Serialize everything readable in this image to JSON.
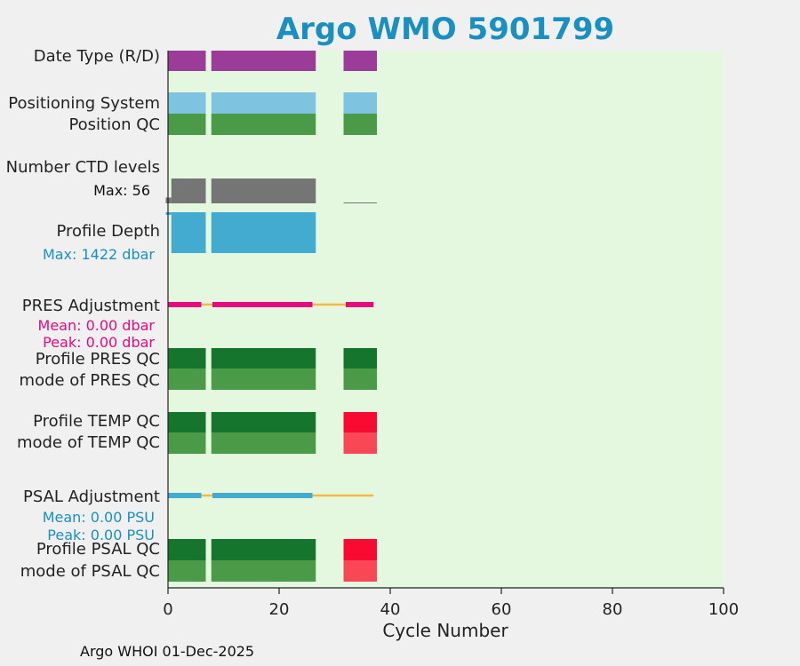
{
  "chart_data": {
    "type": "timeline",
    "title": "Argo WMO 5901799",
    "xlabel": "Cycle Number",
    "xlim": [
      0,
      100
    ],
    "xticks": [
      0,
      20,
      40,
      60,
      80,
      100
    ],
    "background": "#e3f8df",
    "rows": [
      {
        "label": "Date Type (R/D)",
        "color": "#9b3d98",
        "segments": [
          [
            0,
            6.8
          ],
          [
            7.8,
            26.6
          ],
          [
            31.6,
            37.6
          ]
        ]
      },
      {
        "label": "Positioning System",
        "color": "#7ec3df",
        "segments": [
          [
            0,
            6.8
          ],
          [
            7.8,
            26.6
          ],
          [
            31.6,
            37.6
          ]
        ]
      },
      {
        "label": "Position QC",
        "color": "#4a9a48",
        "segments": [
          [
            0,
            6.8
          ],
          [
            7.8,
            26.6
          ],
          [
            31.6,
            37.6
          ]
        ]
      },
      {
        "label": "Number CTD levels",
        "color": "#757575"
      },
      {
        "label": "Profile Depth",
        "color": "#43abcf"
      },
      {
        "label": "PRES Adjustment",
        "color": "#e8097e"
      },
      {
        "label": "Profile PRES QC",
        "color": "#16752c",
        "segments": [
          [
            0,
            6.8
          ],
          [
            7.8,
            26.6
          ],
          [
            31.6,
            37.6
          ]
        ]
      },
      {
        "label": "mode of PRES QC",
        "color": "#4a9a48",
        "segments": [
          [
            0,
            6.8
          ],
          [
            7.8,
            26.6
          ],
          [
            31.6,
            37.6
          ]
        ]
      },
      {
        "label": "Profile TEMP QC",
        "segments": [
          [
            0,
            6.8,
            "#16752c"
          ],
          [
            7.8,
            26.6,
            "#16752c"
          ],
          [
            31.6,
            37.6,
            "#f70b30"
          ]
        ]
      },
      {
        "label": "mode of TEMP QC",
        "segments": [
          [
            0,
            6.8,
            "#4a9a48"
          ],
          [
            7.8,
            26.6,
            "#4a9a48"
          ],
          [
            31.6,
            37.6,
            "#fa4755"
          ]
        ]
      },
      {
        "label": "PSAL Adjustment",
        "color": "#43abcf"
      },
      {
        "label": "Profile PSAL QC",
        "segments": [
          [
            0,
            6.8,
            "#16752c"
          ],
          [
            7.8,
            26.6,
            "#16752c"
          ],
          [
            31.6,
            37.6,
            "#f70b30"
          ]
        ]
      },
      {
        "label": "mode of PSAL QC",
        "segments": [
          [
            0,
            6.8,
            "#4a9a48"
          ],
          [
            7.8,
            26.6,
            "#4a9a48"
          ],
          [
            31.6,
            37.6,
            "#fa4755"
          ]
        ]
      }
    ],
    "ctd_levels": {
      "max_label": "Max: 56",
      "max": 56,
      "color": "#757575",
      "bars": [
        [
          -0.4,
          0.6,
          13
        ],
        [
          0.6,
          6.8,
          56
        ],
        [
          7.8,
          26.6,
          56
        ],
        [
          31.6,
          37.6,
          1
        ]
      ]
    },
    "profile_depth": {
      "max_label": "Max: 1422 dbar",
      "max": 1422,
      "color": "#43abcf",
      "bars": [
        [
          -0.4,
          0.6,
          90
        ],
        [
          0.6,
          6.8,
          1422
        ],
        [
          7.8,
          26.6,
          1422
        ]
      ]
    },
    "pres_adjustment": {
      "mean_label": "Mean: 0.00 dbar",
      "peak_label": "Peak: 0.00 dbar",
      "color": "#e8097e",
      "line_color": "#f5b942",
      "segments": [
        [
          0,
          6.0
        ],
        [
          8.0,
          26.0
        ],
        [
          32.0,
          37.0
        ]
      ],
      "line": [
        0,
        37.0
      ]
    },
    "psal_adjustment": {
      "mean_label": "Mean: 0.00 PSU",
      "peak_label": "Peak: 0.00 PSU",
      "color": "#43abcf",
      "line_color": "#f5b942",
      "segments": [
        [
          0,
          6.0
        ],
        [
          8.0,
          22.0
        ],
        [
          22.0,
          26.0
        ]
      ],
      "line": [
        0,
        37.0
      ]
    }
  },
  "footer": "Argo WHOI 01-Dec-2025"
}
